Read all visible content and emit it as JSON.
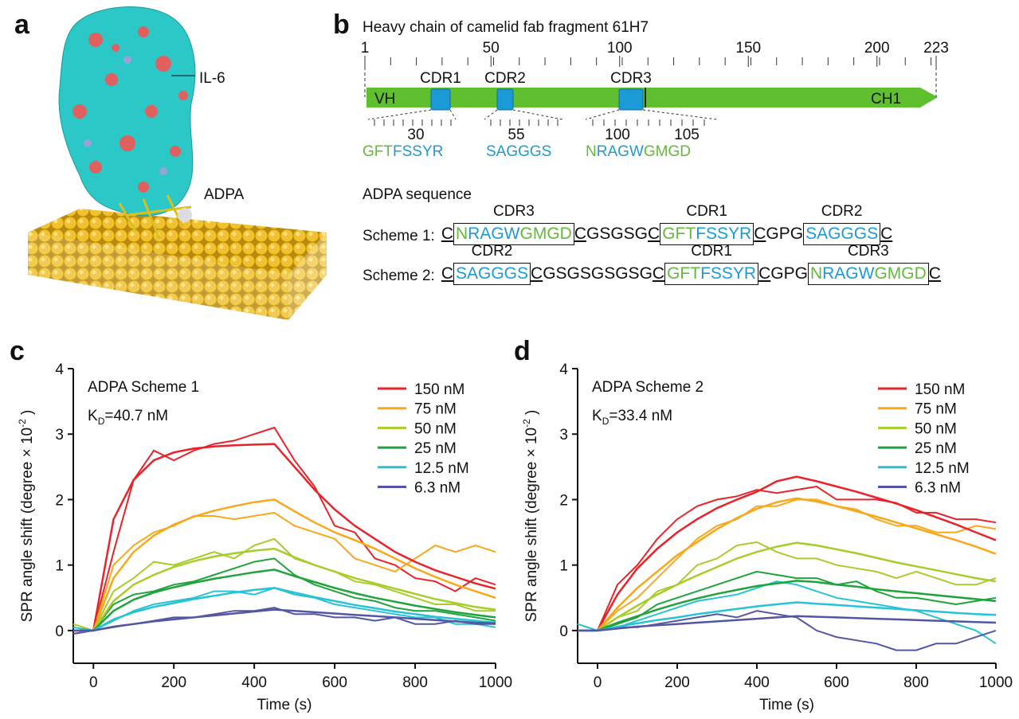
{
  "panel_a": {
    "letter": "a",
    "labels": [
      "IL-6",
      "ADPA"
    ]
  },
  "panel_b": {
    "letter": "b",
    "title": "Heavy chain of camelid fab fragment 61H7",
    "ruler_ticks": [
      1,
      50,
      100,
      150,
      200,
      223
    ],
    "bar": {
      "left": "VH",
      "right": "CH1"
    },
    "cdrs": [
      "CDR1",
      "CDR2",
      "CDR3"
    ],
    "zoom_ticks": [
      30,
      55,
      100,
      105
    ],
    "sequences": [
      [
        {
          "text": "GFT",
          "color": "#62b93a"
        },
        {
          "text": "FSSYR",
          "color": "#1c9ad6"
        }
      ],
      [
        {
          "text": "SAGGGS",
          "color": "#1c9ad6"
        }
      ],
      [
        {
          "text": "N",
          "color": "#62b93a"
        },
        {
          "text": "RAGW",
          "color": "#1c9ad6"
        },
        {
          "text": "GMGD",
          "color": "#62b93a"
        }
      ]
    ],
    "adpa_title": "ADPA sequence",
    "schemes": [
      {
        "label": "Scheme 1:",
        "parts": [
          {
            "text": "C",
            "underline": true
          },
          {
            "cdr": "CDR3",
            "segments": [
              {
                "text": "N",
                "color": "#62b93a"
              },
              {
                "text": "RAGW",
                "color": "#1c9ad6"
              },
              {
                "text": "GMGD",
                "color": "#62b93a"
              }
            ]
          },
          {
            "text": "C",
            "underline": true
          },
          {
            "text": "GSGSG"
          },
          {
            "text": "C",
            "underline": true
          },
          {
            "cdr": "CDR1",
            "segments": [
              {
                "text": "GFT",
                "color": "#62b93a"
              },
              {
                "text": "FSSYR",
                "color": "#1c9ad6"
              }
            ]
          },
          {
            "text": "C",
            "underline": true
          },
          {
            "text": "GPG"
          },
          {
            "cdr": "CDR2",
            "segments": [
              {
                "text": "SAGGGS",
                "color": "#1c9ad6"
              }
            ]
          },
          {
            "text": "C",
            "underline": true
          }
        ]
      },
      {
        "label": "Scheme 2:",
        "parts": [
          {
            "text": "C",
            "underline": true
          },
          {
            "cdr": "CDR2",
            "segments": [
              {
                "text": "SAGGGS",
                "color": "#1c9ad6"
              }
            ]
          },
          {
            "text": "C",
            "underline": true
          },
          {
            "text": "GSGSGSGSG"
          },
          {
            "text": "C",
            "underline": true
          },
          {
            "cdr": "CDR1",
            "segments": [
              {
                "text": "GFT",
                "color": "#62b93a"
              },
              {
                "text": "FSSYR",
                "color": "#1c9ad6"
              }
            ]
          },
          {
            "text": "C",
            "underline": true
          },
          {
            "text": "GPG"
          },
          {
            "cdr": "CDR3",
            "segments": [
              {
                "text": "N",
                "color": "#62b93a"
              },
              {
                "text": "RAGW",
                "color": "#1c9ad6"
              },
              {
                "text": "GMGD",
                "color": "#62b93a"
              }
            ]
          },
          {
            "text": "C",
            "underline": true
          }
        ]
      }
    ]
  },
  "chart_data": [
    {
      "type": "line",
      "letter": "c",
      "title": "ADPA Scheme 1",
      "kd": {
        "main": "K",
        "sub": "D",
        "rest": "=40.7 nM"
      },
      "xlabel": "Time (s)",
      "ylabel": {
        "main": "SPR angle shift (degree × 10",
        "sup": "-2",
        "tail": " )"
      },
      "xlim": [
        -50,
        1000
      ],
      "ylim": [
        -0.5,
        4
      ],
      "xticks": [
        0,
        200,
        400,
        600,
        800,
        1000
      ],
      "yticks": [
        0,
        1,
        2,
        3,
        4
      ],
      "x": [
        -50,
        0,
        50,
        100,
        150,
        200,
        250,
        300,
        350,
        400,
        450,
        500,
        550,
        600,
        650,
        700,
        750,
        800,
        850,
        900,
        950,
        1000
      ],
      "series": [
        {
          "name": "150 nM",
          "color": "#e8232a",
          "values": [
            -0.05,
            0,
            1.2,
            2.3,
            2.75,
            2.6,
            2.75,
            2.85,
            2.9,
            3.0,
            3.1,
            2.6,
            2.2,
            1.6,
            1.5,
            1.1,
            1.0,
            0.8,
            0.75,
            0.6,
            0.8,
            0.7
          ],
          "fit": [
            0,
            0,
            1.7,
            2.3,
            2.6,
            2.72,
            2.78,
            2.81,
            2.83,
            2.84,
            2.85,
            2.5,
            2.15,
            1.85,
            1.6,
            1.4,
            1.2,
            1.05,
            0.92,
            0.82,
            0.72,
            0.64
          ]
        },
        {
          "name": "75 nM",
          "color": "#f7a81b",
          "values": [
            0.05,
            0,
            1.0,
            1.3,
            1.5,
            1.6,
            1.75,
            1.75,
            1.7,
            1.75,
            1.8,
            1.6,
            1.5,
            1.4,
            1.1,
            1.0,
            0.9,
            1.1,
            1.3,
            1.2,
            1.3,
            1.2
          ],
          "fit": [
            0,
            0,
            0.8,
            1.2,
            1.45,
            1.62,
            1.74,
            1.83,
            1.9,
            1.96,
            2.0,
            1.82,
            1.65,
            1.5,
            1.38,
            1.25,
            1.1,
            0.95,
            0.82,
            0.7,
            0.6,
            0.5
          ]
        },
        {
          "name": "50 nM",
          "color": "#a8cc2a",
          "values": [
            0.1,
            0,
            0.6,
            0.8,
            1.05,
            1.0,
            1.1,
            1.2,
            1.1,
            1.3,
            1.4,
            1.1,
            1.0,
            0.9,
            0.75,
            0.7,
            0.6,
            0.5,
            0.4,
            0.4,
            0.3,
            0.3
          ],
          "fit": [
            0,
            0,
            0.45,
            0.7,
            0.85,
            0.97,
            1.06,
            1.13,
            1.18,
            1.22,
            1.25,
            1.12,
            1.0,
            0.9,
            0.8,
            0.72,
            0.64,
            0.56,
            0.48,
            0.42,
            0.36,
            0.32
          ]
        },
        {
          "name": "25 nM",
          "color": "#1fa33a",
          "values": [
            0,
            0,
            0.4,
            0.55,
            0.6,
            0.7,
            0.75,
            0.85,
            0.95,
            1.05,
            1.1,
            0.85,
            0.7,
            0.6,
            0.5,
            0.45,
            0.35,
            0.3,
            0.3,
            0.25,
            0.2,
            0.15
          ],
          "fit": [
            0,
            0,
            0.3,
            0.47,
            0.58,
            0.66,
            0.73,
            0.79,
            0.84,
            0.89,
            0.93,
            0.83,
            0.74,
            0.65,
            0.57,
            0.5,
            0.44,
            0.38,
            0.33,
            0.28,
            0.24,
            0.2
          ]
        },
        {
          "name": "12.5 nM",
          "color": "#27c3d4",
          "values": [
            0.05,
            0,
            0.15,
            0.3,
            0.4,
            0.45,
            0.5,
            0.6,
            0.6,
            0.55,
            0.65,
            0.55,
            0.5,
            0.4,
            0.35,
            0.3,
            0.25,
            0.2,
            0.2,
            0.1,
            0.1,
            0.05
          ],
          "fit": [
            0,
            0,
            0.17,
            0.28,
            0.36,
            0.42,
            0.48,
            0.53,
            0.58,
            0.62,
            0.65,
            0.58,
            0.51,
            0.45,
            0.39,
            0.34,
            0.29,
            0.25,
            0.21,
            0.18,
            0.15,
            0.12
          ]
        },
        {
          "name": "6.3 nM",
          "color": "#5356a3",
          "values": [
            -0.05,
            0,
            0.05,
            0.1,
            0.15,
            0.2,
            0.2,
            0.25,
            0.3,
            0.3,
            0.35,
            0.25,
            0.25,
            0.2,
            0.2,
            0.15,
            0.2,
            0.1,
            0.1,
            0.15,
            0.1,
            0.1
          ],
          "fit": [
            0,
            0,
            0.06,
            0.1,
            0.14,
            0.17,
            0.2,
            0.23,
            0.26,
            0.29,
            0.32,
            0.3,
            0.28,
            0.26,
            0.24,
            0.22,
            0.2,
            0.18,
            0.16,
            0.14,
            0.12,
            0.11
          ]
        }
      ]
    },
    {
      "type": "line",
      "letter": "d",
      "title": "ADPA Scheme 2",
      "kd": {
        "main": "K",
        "sub": "D",
        "rest": "=33.4 nM"
      },
      "xlabel": "Time (s)",
      "ylabel": {
        "main": "SPR angle shift (degree × 10",
        "sup": "-2",
        "tail": " )"
      },
      "xlim": [
        -50,
        1000
      ],
      "ylim": [
        -0.5,
        4
      ],
      "xticks": [
        0,
        200,
        400,
        600,
        800,
        1000
      ],
      "yticks": [
        0,
        1,
        2,
        3,
        4
      ],
      "x": [
        -50,
        0,
        50,
        100,
        150,
        200,
        250,
        300,
        350,
        400,
        450,
        500,
        550,
        600,
        650,
        700,
        750,
        800,
        850,
        900,
        950,
        1000
      ],
      "series": [
        {
          "name": "150 nM",
          "color": "#e8232a",
          "values": [
            0,
            0,
            0.7,
            1.0,
            1.4,
            1.7,
            1.9,
            2.0,
            2.05,
            2.15,
            2.1,
            2.15,
            2.2,
            2.0,
            2.0,
            2.0,
            1.95,
            1.8,
            1.8,
            1.7,
            1.7,
            1.65
          ],
          "fit": [
            0,
            0,
            0.55,
            0.95,
            1.25,
            1.5,
            1.7,
            1.87,
            2.0,
            2.12,
            2.28,
            2.35,
            2.28,
            2.2,
            2.12,
            2.03,
            1.94,
            1.84,
            1.73,
            1.62,
            1.5,
            1.38
          ]
        },
        {
          "name": "75 nM",
          "color": "#f7a81b",
          "values": [
            0.1,
            0,
            0.3,
            0.5,
            0.8,
            1.1,
            1.4,
            1.6,
            1.7,
            1.9,
            1.9,
            2.0,
            2.0,
            1.9,
            1.85,
            1.7,
            1.6,
            1.6,
            1.5,
            1.5,
            1.6,
            1.55
          ],
          "fit": [
            0,
            0,
            0.35,
            0.65,
            0.9,
            1.15,
            1.35,
            1.55,
            1.72,
            1.86,
            1.96,
            2.02,
            1.97,
            1.9,
            1.82,
            1.74,
            1.65,
            1.56,
            1.47,
            1.38,
            1.28,
            1.17
          ]
        },
        {
          "name": "50 nM",
          "color": "#a8cc2a",
          "values": [
            0,
            0,
            0.2,
            0.3,
            0.6,
            0.7,
            1.0,
            1.1,
            1.3,
            1.35,
            1.2,
            1.1,
            1.1,
            1.0,
            0.95,
            0.9,
            0.8,
            0.9,
            0.8,
            0.7,
            0.7,
            0.8
          ],
          "fit": [
            0,
            0,
            0.2,
            0.38,
            0.55,
            0.7,
            0.84,
            0.97,
            1.1,
            1.2,
            1.28,
            1.34,
            1.3,
            1.24,
            1.18,
            1.11,
            1.04,
            0.98,
            0.92,
            0.86,
            0.8,
            0.75
          ]
        },
        {
          "name": "25 nM",
          "color": "#1fa33a",
          "values": [
            0,
            0,
            0.1,
            0.2,
            0.4,
            0.5,
            0.6,
            0.7,
            0.8,
            0.9,
            0.85,
            0.8,
            0.8,
            0.7,
            0.75,
            0.6,
            0.5,
            0.5,
            0.45,
            0.4,
            0.45,
            0.5
          ],
          "fit": [
            0,
            0,
            0.12,
            0.22,
            0.32,
            0.41,
            0.49,
            0.56,
            0.62,
            0.68,
            0.72,
            0.76,
            0.74,
            0.7,
            0.67,
            0.63,
            0.6,
            0.57,
            0.54,
            0.51,
            0.48,
            0.45
          ]
        },
        {
          "name": "12.5 nM",
          "color": "#27c3d4",
          "values": [
            0.1,
            0,
            0.05,
            0.15,
            0.25,
            0.35,
            0.45,
            0.5,
            0.55,
            0.65,
            0.75,
            0.7,
            0.6,
            0.5,
            0.45,
            0.4,
            0.35,
            0.3,
            0.2,
            0.1,
            0.0,
            -0.2
          ],
          "fit": [
            0,
            0,
            0.06,
            0.11,
            0.16,
            0.2,
            0.25,
            0.29,
            0.33,
            0.37,
            0.4,
            0.43,
            0.41,
            0.39,
            0.37,
            0.35,
            0.33,
            0.31,
            0.29,
            0.27,
            0.25,
            0.24
          ]
        },
        {
          "name": "6.3 nM",
          "color": "#5356a3",
          "values": [
            0,
            0,
            0.05,
            0.05,
            0.1,
            0.15,
            0.2,
            0.25,
            0.2,
            0.3,
            0.25,
            0.2,
            0.0,
            -0.1,
            -0.15,
            -0.2,
            -0.3,
            -0.3,
            -0.2,
            -0.2,
            -0.1,
            0.0
          ],
          "fit": [
            0,
            0,
            0.03,
            0.06,
            0.08,
            0.1,
            0.12,
            0.14,
            0.16,
            0.18,
            0.2,
            0.22,
            0.21,
            0.2,
            0.19,
            0.18,
            0.17,
            0.16,
            0.15,
            0.14,
            0.13,
            0.12
          ]
        }
      ]
    }
  ]
}
